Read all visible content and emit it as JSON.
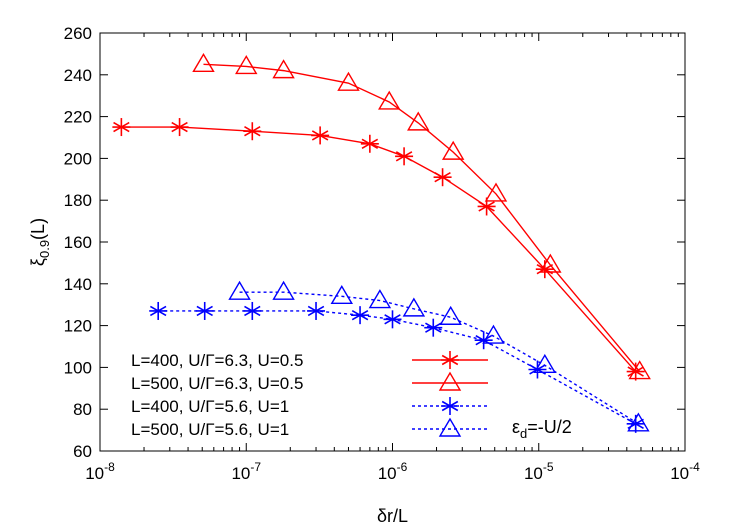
{
  "chart_data": {
    "type": "line",
    "xlabel": "δr/L",
    "ylabel": "ξ0.9(L)",
    "x_scale": "log",
    "xlim": [
      1e-08,
      0.0001
    ],
    "ylim": [
      60,
      260
    ],
    "x_ticks": [
      {
        "value": 1e-08,
        "base": "10",
        "exp": "-8"
      },
      {
        "value": 1e-07,
        "base": "10",
        "exp": "-7"
      },
      {
        "value": 1e-06,
        "base": "10",
        "exp": "-6"
      },
      {
        "value": 1e-05,
        "base": "10",
        "exp": "-5"
      },
      {
        "value": 0.0001,
        "base": "10",
        "exp": "-4"
      }
    ],
    "y_ticks": [
      60,
      80,
      100,
      120,
      140,
      160,
      180,
      200,
      220,
      240,
      260
    ],
    "grid": false,
    "legend_position": "bottom-left",
    "annotation": "εd=-U/2",
    "series": [
      {
        "name": "L=400, U/Γ=6.3, U=0.5",
        "color": "#ff0000",
        "marker": "star",
        "line": "solid",
        "x": [
          1.4e-08,
          3.5e-08,
          1.1e-07,
          3.2e-07,
          7e-07,
          1.2e-06,
          2.2e-06,
          4.4e-06,
          1.1e-05,
          4.6e-05
        ],
        "y": [
          215,
          215,
          213,
          211,
          207,
          201,
          191,
          177,
          147,
          98
        ]
      },
      {
        "name": "L=500, U/Γ=6.3, U=0.5",
        "color": "#ff0000",
        "marker": "triangle",
        "line": "solid",
        "x": [
          5.1e-08,
          1e-07,
          1.8e-07,
          5e-07,
          9.5e-07,
          1.5e-06,
          2.6e-06,
          5.1e-06,
          1.2e-05,
          4.9e-05
        ],
        "y": [
          245,
          244,
          242,
          236,
          227,
          217,
          203,
          183,
          149,
          98
        ]
      },
      {
        "name": "L=400, U/Γ=5.6, U=1",
        "color": "#0000ff",
        "marker": "star",
        "line": "dotted",
        "x": [
          2.5e-08,
          5.2e-08,
          1.1e-07,
          3e-07,
          6e-07,
          1e-06,
          1.9e-06,
          4.2e-06,
          9.8e-06,
          4.6e-05
        ],
        "y": [
          127,
          127,
          127,
          127,
          125,
          123,
          119,
          113,
          99,
          73
        ]
      },
      {
        "name": "L=500, U/Γ=5.6, U=1",
        "color": "#0000ff",
        "marker": "triangle",
        "line": "dotted",
        "x": [
          9e-08,
          1.8e-07,
          4.5e-07,
          8.2e-07,
          1.4e-06,
          2.5e-06,
          4.9e-06,
          1.1e-05,
          4.8e-05
        ],
        "y": [
          136,
          136,
          134,
          132,
          128,
          124,
          115,
          101,
          73
        ]
      }
    ]
  }
}
